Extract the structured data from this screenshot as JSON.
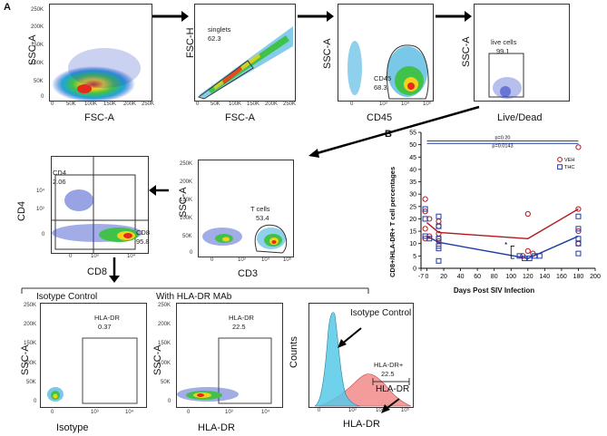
{
  "panel_labels": {
    "a": "A",
    "b": "B"
  },
  "plot1": {
    "ylabel": "SSC-A",
    "xlabel": "FSC-A",
    "yticks": [
      "250K",
      "200K",
      "150K",
      "100K",
      "50K",
      "0"
    ],
    "xticks": [
      "0",
      "50K",
      "100K",
      "150K",
      "200K",
      "250K"
    ]
  },
  "plot2": {
    "ylabel": "FSC-H",
    "xlabel": "FSC-A",
    "gate_name": "singlets",
    "gate_value": "62.3",
    "yticks": [
      "250K",
      "200K",
      "150K",
      "100K",
      "50K",
      "0"
    ],
    "xticks": [
      "0",
      "50K",
      "100K",
      "150K",
      "200K",
      "250K"
    ]
  },
  "plot3": {
    "ylabel": "SSC-A",
    "xlabel": "CD45",
    "gate_name": "CD45",
    "gate_value": "68.3",
    "yticks": [
      "250K",
      "200K",
      "150K",
      "100K",
      "50K",
      "0"
    ],
    "xticks": [
      "0",
      "10³",
      "10⁴",
      "10⁵"
    ]
  },
  "plot4": {
    "ylabel": "SSC-A",
    "xlabel": "Live/Dead",
    "gate_name": "live cells",
    "gate_value": "99.1"
  },
  "plot5": {
    "ylabel": "SSC-A",
    "xlabel": "CD3",
    "gate_name": "T cells",
    "gate_value": "53.4",
    "yticks": [
      "250K",
      "200K",
      "150K",
      "100K",
      "50K",
      "0"
    ],
    "xticks": [
      "0",
      "10³",
      "10⁴",
      "10⁵"
    ]
  },
  "plot6": {
    "ylabel": "CD4",
    "xlabel": "CD8",
    "q1_name": "CD4",
    "q1_value": "2.06",
    "q2_name": "CD8",
    "q2_value": "95.8",
    "yticks": [
      "10⁴",
      "10³",
      "0"
    ],
    "xticks": [
      "0",
      "10³",
      "10⁴"
    ]
  },
  "plot7": {
    "title": "Isotype Control",
    "ylabel": "SSC-A",
    "xlabel": "Isotype",
    "gate_name": "HLA-DR",
    "gate_value": "0.37",
    "yticks": [
      "250K",
      "200K",
      "150K",
      "100K",
      "50K",
      "0"
    ],
    "xticks": [
      "0",
      "10³",
      "10⁴"
    ]
  },
  "plot8": {
    "title": "With HLA-DR MAb",
    "ylabel": "SSC-A",
    "xlabel": "HLA-DR",
    "gate_name": "HLA-DR",
    "gate_value": "22.5",
    "yticks": [
      "250K",
      "200K",
      "150K",
      "100K",
      "50K",
      "0"
    ],
    "xticks": [
      "0",
      "10³",
      "10⁴"
    ]
  },
  "plot9": {
    "ylabel": "Counts",
    "xlabel": "HLA-DR",
    "ann_isotype": "Isotype Control",
    "ann_hladr": "HLA-DR",
    "gate_name": "HLA-DR+",
    "gate_value": "22.5",
    "xticks": [
      "0",
      "10³",
      "10⁴",
      "10⁵"
    ]
  },
  "colors": {
    "veh": "#b0191e",
    "thc": "#1f3aa5",
    "isotype_fill": "#57c9e8",
    "hladr_fill": "#f28b8b"
  },
  "chart_data": {
    "type": "scatter",
    "title": "",
    "xlabel": "Days Post  SIV Infection",
    "ylabel": "CD8+/HLA-DR+ T cell percentages",
    "xlim": [
      -7,
      200
    ],
    "ylim": [
      0,
      55
    ],
    "xticks": [
      "-7",
      "0",
      "20",
      "40",
      "60",
      "80",
      "100",
      "120",
      "140",
      "160",
      "180",
      "200"
    ],
    "yticks": [
      "0",
      "5",
      "10",
      "15",
      "20",
      "25",
      "30",
      "35",
      "40",
      "45",
      "50",
      "55"
    ],
    "legend": [
      "VEH",
      "THC"
    ],
    "legend_position": "top-right",
    "pvalue_red": "p=0.20",
    "pvalue_blue": "p=0.0143",
    "significance": "*",
    "series": [
      {
        "name": "VEH",
        "marker": "circle",
        "points": [
          [
            -2,
            28
          ],
          [
            -2,
            23
          ],
          [
            3,
            20
          ],
          [
            -2,
            16
          ],
          [
            3,
            13
          ],
          [
            -2,
            12
          ],
          [
            14,
            19
          ],
          [
            14,
            17
          ],
          [
            14,
            14
          ],
          [
            14,
            12
          ],
          [
            14,
            11
          ],
          [
            120,
            22
          ],
          [
            120,
            7
          ],
          [
            126,
            6
          ],
          [
            114,
            5
          ],
          [
            180,
            49
          ],
          [
            180,
            24
          ],
          [
            180,
            15
          ],
          [
            180,
            10
          ],
          [
            180,
            10
          ]
        ],
        "mean_line": [
          [
            0,
            18.5
          ],
          [
            14,
            14.5
          ],
          [
            120,
            12
          ],
          [
            180,
            24
          ]
        ]
      },
      {
        "name": "THC",
        "marker": "square",
        "points": [
          [
            -2,
            24
          ],
          [
            -2,
            20
          ],
          [
            -2,
            13
          ],
          [
            3,
            12
          ],
          [
            14,
            21
          ],
          [
            14,
            17
          ],
          [
            14,
            12
          ],
          [
            14,
            9
          ],
          [
            14,
            8
          ],
          [
            14,
            3
          ],
          [
            110,
            5
          ],
          [
            116,
            4
          ],
          [
            122,
            4
          ],
          [
            128,
            5
          ],
          [
            134,
            5
          ],
          [
            180,
            21
          ],
          [
            180,
            16
          ],
          [
            180,
            12
          ],
          [
            180,
            10
          ],
          [
            180,
            6
          ]
        ],
        "mean_line": [
          [
            0,
            13
          ],
          [
            14,
            10.5
          ],
          [
            120,
            4
          ],
          [
            180,
            13
          ]
        ]
      }
    ]
  }
}
